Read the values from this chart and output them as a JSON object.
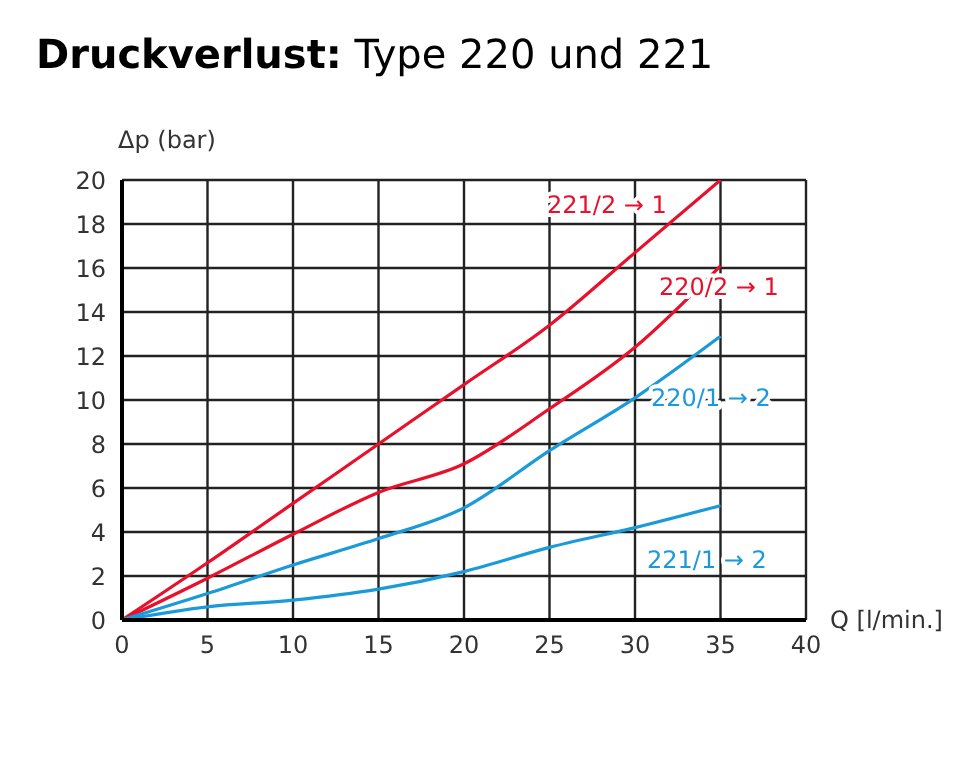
{
  "chart_data": {
    "type": "line",
    "title": "Druckverlust: Type 220 und 221",
    "xlabel": "Q [l/min.]",
    "ylabel": "Δp (bar)",
    "x": [
      0,
      5,
      10,
      15,
      20,
      25,
      30,
      35
    ],
    "series": [
      {
        "name": "221/2 → 1",
        "color": "#e8102a",
        "values": [
          0,
          2.6,
          5.3,
          8.0,
          10.7,
          13.4,
          16.7,
          20
        ]
      },
      {
        "name": "220/2 → 1",
        "color": "#e8102a",
        "values": [
          0,
          1.9,
          3.9,
          5.8,
          7.1,
          9.6,
          12.4,
          16.1
        ]
      },
      {
        "name": "220/1 → 2",
        "color": "#1a9ad9",
        "values": [
          0,
          1.2,
          2.5,
          3.7,
          5.1,
          7.7,
          10.1,
          12.9
        ]
      },
      {
        "name": "221/1 → 2",
        "color": "#1a9ad9",
        "values": [
          0,
          0.6,
          0.9,
          1.4,
          2.2,
          3.3,
          4.2,
          5.2
        ]
      }
    ],
    "xlim": [
      0,
      40
    ],
    "xticks": [
      0,
      5,
      10,
      15,
      20,
      25,
      30,
      35,
      40
    ],
    "ylim": [
      0,
      20
    ],
    "yticks": [
      0,
      2,
      4,
      6,
      8,
      10,
      12,
      14,
      16,
      18,
      20
    ],
    "grid": true,
    "marker": "none",
    "line_style": "solid"
  }
}
